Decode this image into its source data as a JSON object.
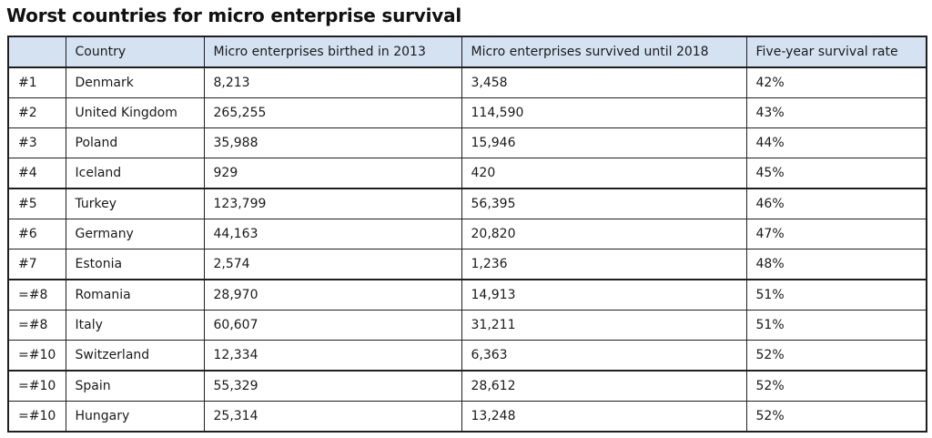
{
  "title": "Worst countries for micro enterprise survival",
  "table": {
    "headers": [
      "",
      "Country",
      "Micro enterprises birthed in 2013",
      "Micro enterprises survived until 2018",
      "Five-year survival rate"
    ],
    "rows": [
      [
        "#1",
        "Denmark",
        "8,213",
        "3,458",
        "42%"
      ],
      [
        "#2",
        "United Kingdom",
        "265,255",
        "114,590",
        "43%"
      ],
      [
        "#3",
        "Poland",
        "35,988",
        "15,946",
        "44%"
      ],
      [
        "#4",
        "Iceland",
        "929",
        "420",
        "45%"
      ],
      [
        "#5",
        "Turkey",
        "123,799",
        "56,395",
        "46%"
      ],
      [
        "#6",
        "Germany",
        "44,163",
        "20,820",
        "47%"
      ],
      [
        "#7",
        "Estonia",
        "2,574",
        "1,236",
        "48%"
      ],
      [
        "=#8",
        "Romania",
        "28,970",
        "14,913",
        "51%"
      ],
      [
        "=#8",
        "Italy",
        "60,607",
        "31,211",
        "51%"
      ],
      [
        "=#10",
        "Switzerland",
        "12,334",
        "6,363",
        "52%"
      ],
      [
        "=#10",
        "Spain",
        "55,329",
        "28,612",
        "52%"
      ],
      [
        "=#10",
        "Hungary",
        "25,314",
        "13,248",
        "52%"
      ]
    ]
  },
  "colors": {
    "header_background": "#d4e2f2",
    "border": "#1f1f1f"
  }
}
